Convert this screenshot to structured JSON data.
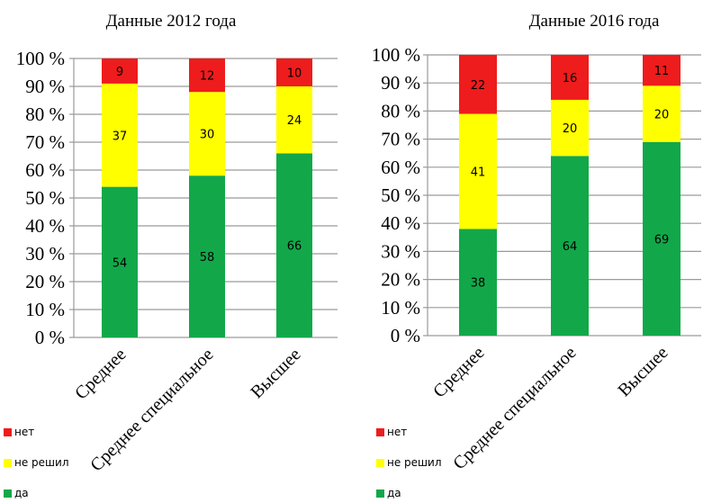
{
  "colors": {
    "no": "#ee1c1c",
    "undecided": "#ffff00",
    "yes": "#12a84a",
    "grid": "#9a9a9a"
  },
  "legend": [
    {
      "key": "no",
      "label": "нет"
    },
    {
      "key": "undecided",
      "label": "не решил"
    },
    {
      "key": "yes",
      "label": "да"
    }
  ],
  "chart_data": [
    {
      "type": "bar",
      "stacked": true,
      "title": "Данные 2012 года",
      "categories": [
        "Среднее",
        "Среднее специальное",
        "Высшее"
      ],
      "yticks": [
        "0 %",
        "10 %",
        "20 %",
        "30 %",
        "40 %",
        "50 %",
        "60 %",
        "70 %",
        "80 %",
        "90 %",
        "100 %"
      ],
      "ylim": [
        0,
        100
      ],
      "series": [
        {
          "key": "yes",
          "name": "да",
          "values": [
            54,
            58,
            66
          ]
        },
        {
          "key": "undecided",
          "name": "не решил",
          "values": [
            37,
            30,
            24
          ]
        },
        {
          "key": "no",
          "name": "нет",
          "values": [
            9,
            12,
            10
          ]
        }
      ]
    },
    {
      "type": "bar",
      "stacked": true,
      "title": "Данные 2016 года",
      "categories": [
        "Среднее",
        "Среднее специальное",
        "Высшее"
      ],
      "yticks": [
        "0 %",
        "10 %",
        "20 %",
        "30 %",
        "40 %",
        "50 %",
        "60 %",
        "70 %",
        "80 %",
        "90 %",
        "100 %"
      ],
      "ylim": [
        0,
        100
      ],
      "series": [
        {
          "key": "yes",
          "name": "да",
          "values": [
            38,
            64,
            69
          ]
        },
        {
          "key": "undecided",
          "name": "не решил",
          "values": [
            41,
            20,
            20
          ]
        },
        {
          "key": "no",
          "name": "нет",
          "values": [
            22,
            16,
            11
          ]
        }
      ]
    }
  ]
}
